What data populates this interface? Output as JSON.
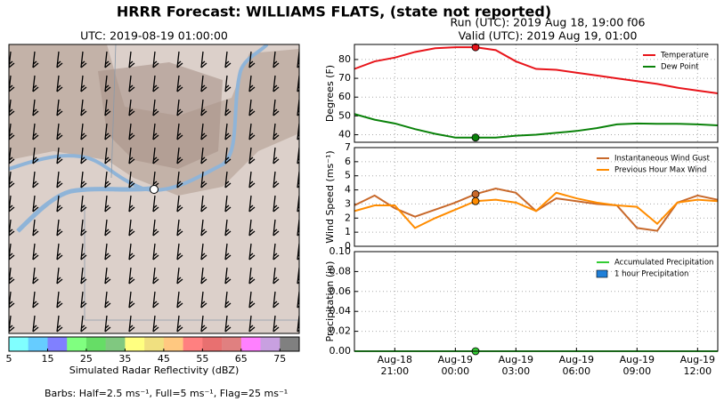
{
  "title": "HRRR Forecast: WILLIAMS FLATS, (state not reported)",
  "run": "Run (UTC): 2019 Aug 18, 19:00 f06",
  "valid": "Valid (UTC): 2019 Aug 19, 01:00",
  "map": {
    "title": "UTC: 2019-08-19 01:00:00",
    "note": "Barbs: Half=2.5 ms⁻¹, Full=5 ms⁻¹, Flag=25 ms⁻¹",
    "colorbar": {
      "label": "Simulated Radar Reflectivity (dBZ)",
      "lim": [
        5,
        80
      ],
      "ticks": [
        5,
        15,
        25,
        35,
        45,
        55,
        65,
        75
      ],
      "colors": [
        "#80ffff",
        "#66ccff",
        "#8080ff",
        "#80ff80",
        "#66dd66",
        "#80c880",
        "#ffff80",
        "#f0e080",
        "#ffc880",
        "#ff8080",
        "#e87070",
        "#e08080",
        "#ff80ff",
        "#c8a0e0",
        "#808080"
      ]
    }
  },
  "chart_data": [
    {
      "type": "line",
      "ylabel": "Degrees (F)",
      "ylim": [
        36,
        88
      ],
      "yticks": [
        40,
        50,
        60,
        70,
        80
      ],
      "grid": true,
      "legend": "upper right",
      "marker_x": "Aug-19 01:00",
      "series": [
        {
          "name": "Temperature",
          "color": "#e8141a",
          "values": [
            75,
            79,
            81,
            84,
            86,
            86.5,
            86.5,
            85,
            79,
            75,
            74.5,
            73,
            71.5,
            70,
            68.5,
            67,
            65,
            63.5,
            62
          ]
        },
        {
          "name": "Dew Point",
          "color": "#0a820a",
          "values": [
            51,
            48,
            46,
            43,
            40.5,
            38.5,
            38.5,
            38.5,
            39.5,
            40,
            41,
            42,
            43.5,
            45.5,
            46,
            45.8,
            45.8,
            45.5,
            45
          ]
        }
      ]
    },
    {
      "type": "line",
      "ylabel": "Wind Speed (ms⁻¹)",
      "ylim": [
        0,
        7
      ],
      "yticks": [
        0,
        1,
        2,
        3,
        4,
        5,
        6,
        7
      ],
      "grid": true,
      "legend": "upper right",
      "marker_x": "Aug-19 01:00",
      "series": [
        {
          "name": "Instantaneous Wind Gust",
          "color": "#c8692b",
          "values": [
            2.9,
            3.6,
            2.7,
            2.1,
            2.6,
            3.1,
            3.7,
            4.1,
            3.8,
            2.5,
            3.4,
            3.2,
            3.0,
            2.9,
            1.3,
            1.1,
            3.1,
            3.6,
            3.3
          ]
        },
        {
          "name": "Previous Hour Max Wind",
          "color": "#ff8c00",
          "values": [
            2.5,
            2.9,
            2.9,
            1.3,
            2.0,
            2.6,
            3.2,
            3.3,
            3.1,
            2.5,
            3.8,
            3.4,
            3.1,
            2.9,
            2.8,
            1.6,
            3.1,
            3.3,
            3.2
          ]
        }
      ]
    },
    {
      "type": "line",
      "ylabel": "Precipitation (in)",
      "ylim": [
        0,
        0.1
      ],
      "yticks": [
        {
          "value": 0,
          "label": "0.00"
        },
        {
          "value": 0.02,
          "label": "0.02"
        },
        {
          "value": 0.04,
          "label": "0.04"
        },
        {
          "value": 0.06,
          "label": "0.06"
        },
        {
          "value": 0.08,
          "label": "0.08"
        },
        {
          "value": 0.1,
          "label": "0.10"
        }
      ],
      "grid": true,
      "legend": "upper right",
      "marker_x": "Aug-19 01:00",
      "x": [
        "Aug-18 19:00",
        "Aug-18 20:00",
        "Aug-18 21:00",
        "Aug-18 22:00",
        "Aug-18 23:00",
        "Aug-19 00:00",
        "Aug-19 01:00",
        "Aug-19 02:00",
        "Aug-19 03:00",
        "Aug-19 04:00",
        "Aug-19 05:00",
        "Aug-19 06:00",
        "Aug-19 07:00",
        "Aug-19 08:00",
        "Aug-19 09:00",
        "Aug-19 10:00",
        "Aug-19 11:00",
        "Aug-19 12:00",
        "Aug-19 13:00"
      ],
      "xticks": [
        {
          "value": "Aug-18 21:00",
          "label": [
            "Aug-18",
            "21:00"
          ]
        },
        {
          "value": "Aug-19 00:00",
          "label": [
            "Aug-19",
            "00:00"
          ]
        },
        {
          "value": "Aug-19 03:00",
          "label": [
            "Aug-19",
            "03:00"
          ]
        },
        {
          "value": "Aug-19 06:00",
          "label": [
            "Aug-19",
            "06:00"
          ]
        },
        {
          "value": "Aug-19 09:00",
          "label": [
            "Aug-19",
            "09:00"
          ]
        },
        {
          "value": "Aug-19 12:00",
          "label": [
            "Aug-19",
            "12:00"
          ]
        }
      ],
      "series": [
        {
          "name": "Accumulated Precipitation",
          "color": "#33cc33",
          "values": [
            0,
            0,
            0,
            0,
            0,
            0,
            0,
            0,
            0,
            0,
            0,
            0,
            0,
            0,
            0,
            0,
            0,
            0,
            0
          ]
        },
        {
          "name": "1 hour Precipitation",
          "color": "#1f7fd8",
          "kind": "bar",
          "values": [
            0,
            0,
            0,
            0,
            0,
            0,
            0,
            0,
            0,
            0,
            0,
            0,
            0,
            0,
            0,
            0,
            0,
            0,
            0
          ]
        }
      ]
    }
  ]
}
